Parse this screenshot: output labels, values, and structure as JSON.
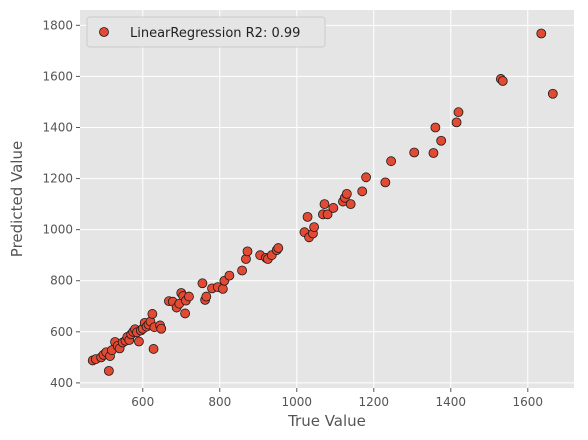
{
  "chart_data": {
    "type": "scatter",
    "xlabel": "True Value",
    "ylabel": "Predicted Value",
    "xlim": [
      437,
      1720
    ],
    "ylim": [
      380,
      1860
    ],
    "xticks": [
      400,
      600,
      800,
      1000,
      1200,
      1400,
      1600
    ],
    "yticks": [
      400,
      600,
      800,
      1000,
      1200,
      1400,
      1600,
      1800
    ],
    "grid": true,
    "legend_position": "top-left",
    "colors": {
      "marker": "#E24A33",
      "marker_edge": "#1a1a1a",
      "plot_background": "#E5E5E5",
      "grid": "#ffffff"
    },
    "series": [
      {
        "name": "LinearRegression  R2: 0.99",
        "points": [
          [
            470,
            488
          ],
          [
            478,
            493
          ],
          [
            492,
            500
          ],
          [
            498,
            510
          ],
          [
            505,
            520
          ],
          [
            512,
            447
          ],
          [
            515,
            505
          ],
          [
            520,
            528
          ],
          [
            528,
            560
          ],
          [
            535,
            545
          ],
          [
            540,
            535
          ],
          [
            548,
            558
          ],
          [
            555,
            565
          ],
          [
            560,
            580
          ],
          [
            565,
            568
          ],
          [
            570,
            590
          ],
          [
            575,
            600
          ],
          [
            580,
            610
          ],
          [
            585,
            598
          ],
          [
            590,
            562
          ],
          [
            595,
            605
          ],
          [
            600,
            612
          ],
          [
            605,
            635
          ],
          [
            610,
            620
          ],
          [
            615,
            628
          ],
          [
            620,
            640
          ],
          [
            625,
            670
          ],
          [
            628,
            533
          ],
          [
            630,
            618
          ],
          [
            645,
            625
          ],
          [
            648,
            612
          ],
          [
            668,
            720
          ],
          [
            678,
            718
          ],
          [
            688,
            695
          ],
          [
            695,
            710
          ],
          [
            700,
            752
          ],
          [
            705,
            740
          ],
          [
            710,
            672
          ],
          [
            712,
            722
          ],
          [
            720,
            738
          ],
          [
            755,
            790
          ],
          [
            762,
            725
          ],
          [
            765,
            738
          ],
          [
            780,
            770
          ],
          [
            795,
            775
          ],
          [
            808,
            768
          ],
          [
            812,
            800
          ],
          [
            825,
            820
          ],
          [
            858,
            840
          ],
          [
            868,
            885
          ],
          [
            872,
            915
          ],
          [
            905,
            900
          ],
          [
            920,
            890
          ],
          [
            925,
            885
          ],
          [
            935,
            900
          ],
          [
            948,
            920
          ],
          [
            952,
            928
          ],
          [
            1020,
            990
          ],
          [
            1028,
            1050
          ],
          [
            1032,
            970
          ],
          [
            1042,
            985
          ],
          [
            1045,
            1010
          ],
          [
            1068,
            1060
          ],
          [
            1072,
            1100
          ],
          [
            1080,
            1060
          ],
          [
            1095,
            1085
          ],
          [
            1120,
            1110
          ],
          [
            1125,
            1125
          ],
          [
            1130,
            1140
          ],
          [
            1140,
            1100
          ],
          [
            1170,
            1150
          ],
          [
            1180,
            1205
          ],
          [
            1230,
            1185
          ],
          [
            1245,
            1268
          ],
          [
            1305,
            1302
          ],
          [
            1355,
            1300
          ],
          [
            1360,
            1400
          ],
          [
            1375,
            1348
          ],
          [
            1415,
            1420
          ],
          [
            1420,
            1460
          ],
          [
            1530,
            1590
          ],
          [
            1535,
            1582
          ],
          [
            1635,
            1768
          ],
          [
            1665,
            1532
          ]
        ]
      }
    ]
  }
}
